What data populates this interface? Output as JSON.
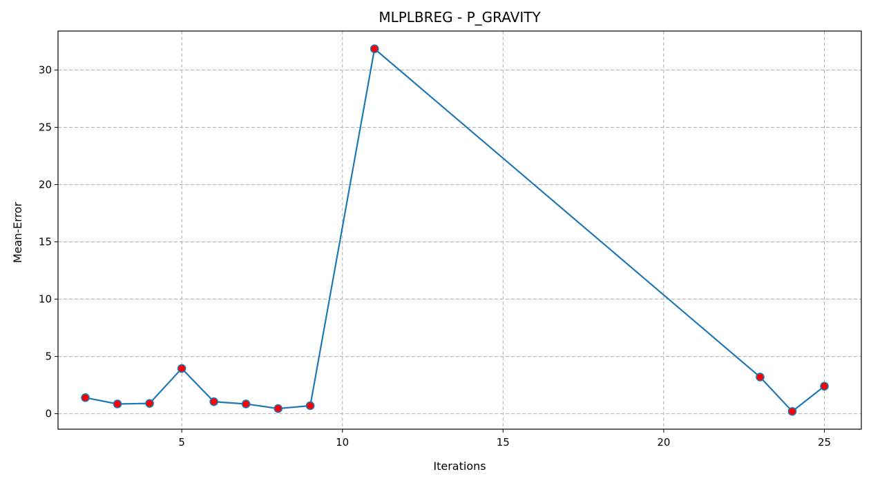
{
  "chart_data": {
    "type": "line",
    "title": "MLPLBREG - P_GRAVITY",
    "xlabel": "Iterations",
    "ylabel": "Mean-Error",
    "xlim": [
      1.15,
      26.15
    ],
    "ylim": [
      -1.35,
      33.4
    ],
    "xticks": [
      5,
      10,
      15,
      20,
      25
    ],
    "yticks": [
      0,
      5,
      10,
      15,
      20,
      25,
      30
    ],
    "grid": true,
    "line_color": "#1f77b4",
    "marker_face_color": "#ff0000",
    "marker_edge_color": "#1f77b4",
    "series": [
      {
        "x": [
          2,
          3,
          4,
          5,
          6,
          7,
          8,
          9,
          11,
          23,
          24,
          25
        ],
        "y": [
          1.4,
          0.85,
          0.9,
          3.95,
          1.05,
          0.85,
          0.45,
          0.7,
          31.85,
          3.2,
          0.2,
          2.4
        ]
      }
    ]
  }
}
